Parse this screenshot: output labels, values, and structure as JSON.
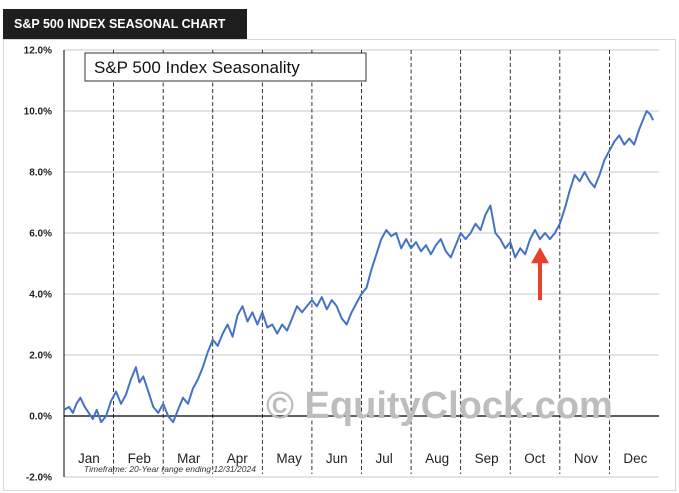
{
  "header": {
    "banner_text": "S&P 500 INDEX SEASONAL CHART"
  },
  "chart_data": {
    "type": "line",
    "title": "S&P 500 Index Seasonality",
    "xlabel": "",
    "ylabel": "",
    "ylim": [
      -2,
      12
    ],
    "xlim": [
      0,
      12
    ],
    "grid": {
      "horizontal": true,
      "vertical_dashed_month_separators": true
    },
    "y_ticks": [
      "12.0%",
      "10.0%",
      "8.0%",
      "6.0%",
      "4.0%",
      "2.0%",
      "0.0%",
      "-2.0%"
    ],
    "y_tick_values": [
      12,
      10,
      8,
      6,
      4,
      2,
      0,
      -2
    ],
    "categories": [
      "Jan",
      "Feb",
      "Mar",
      "Apr",
      "May",
      "Jun",
      "Jul",
      "Aug",
      "Sep",
      "Oct",
      "Nov",
      "Dec"
    ],
    "footnote": "Timeframe: 20-Year range ending 12/31/2024",
    "watermark": "© EquityClock.com",
    "line_color": "#4472c4",
    "arrow_color": "#e8402a",
    "annotation": {
      "type": "arrow",
      "x": 9.6,
      "y_tip": 5.4,
      "y_tail": 3.8
    },
    "series": [
      {
        "values": [
          [
            0.0,
            0.2
          ],
          [
            0.1,
            0.3
          ],
          [
            0.18,
            0.1
          ],
          [
            0.25,
            0.4
          ],
          [
            0.33,
            0.6
          ],
          [
            0.42,
            0.3
          ],
          [
            0.5,
            0.1
          ],
          [
            0.58,
            -0.1
          ],
          [
            0.66,
            0.2
          ],
          [
            0.75,
            -0.2
          ],
          [
            0.85,
            0.0
          ],
          [
            0.95,
            0.5
          ],
          [
            1.05,
            0.8
          ],
          [
            1.15,
            0.4
          ],
          [
            1.25,
            0.7
          ],
          [
            1.35,
            1.2
          ],
          [
            1.45,
            1.6
          ],
          [
            1.52,
            1.1
          ],
          [
            1.6,
            1.3
          ],
          [
            1.7,
            0.8
          ],
          [
            1.8,
            0.3
          ],
          [
            1.9,
            0.1
          ],
          [
            2.0,
            0.4
          ],
          [
            2.1,
            0.0
          ],
          [
            2.2,
            -0.2
          ],
          [
            2.3,
            0.2
          ],
          [
            2.4,
            0.6
          ],
          [
            2.5,
            0.4
          ],
          [
            2.6,
            0.9
          ],
          [
            2.7,
            1.2
          ],
          [
            2.8,
            1.6
          ],
          [
            2.9,
            2.1
          ],
          [
            3.0,
            2.5
          ],
          [
            3.1,
            2.3
          ],
          [
            3.2,
            2.7
          ],
          [
            3.3,
            3.0
          ],
          [
            3.4,
            2.6
          ],
          [
            3.5,
            3.3
          ],
          [
            3.6,
            3.6
          ],
          [
            3.7,
            3.1
          ],
          [
            3.8,
            3.4
          ],
          [
            3.9,
            3.0
          ],
          [
            4.0,
            3.4
          ],
          [
            4.1,
            2.9
          ],
          [
            4.2,
            3.0
          ],
          [
            4.3,
            2.7
          ],
          [
            4.4,
            3.0
          ],
          [
            4.5,
            2.8
          ],
          [
            4.6,
            3.2
          ],
          [
            4.7,
            3.6
          ],
          [
            4.8,
            3.4
          ],
          [
            5.0,
            3.8
          ],
          [
            5.1,
            3.6
          ],
          [
            5.2,
            3.9
          ],
          [
            5.3,
            3.5
          ],
          [
            5.4,
            3.8
          ],
          [
            5.5,
            3.6
          ],
          [
            5.6,
            3.2
          ],
          [
            5.7,
            3.0
          ],
          [
            5.8,
            3.4
          ],
          [
            5.9,
            3.7
          ],
          [
            6.0,
            4.0
          ],
          [
            6.1,
            4.2
          ],
          [
            6.2,
            4.8
          ],
          [
            6.3,
            5.3
          ],
          [
            6.4,
            5.8
          ],
          [
            6.5,
            6.1
          ],
          [
            6.6,
            5.9
          ],
          [
            6.7,
            6.0
          ],
          [
            6.8,
            5.5
          ],
          [
            6.9,
            5.8
          ],
          [
            7.0,
            5.5
          ],
          [
            7.1,
            5.7
          ],
          [
            7.2,
            5.4
          ],
          [
            7.3,
            5.6
          ],
          [
            7.4,
            5.3
          ],
          [
            7.5,
            5.6
          ],
          [
            7.6,
            5.8
          ],
          [
            7.7,
            5.4
          ],
          [
            7.8,
            5.2
          ],
          [
            7.9,
            5.6
          ],
          [
            8.0,
            6.0
          ],
          [
            8.1,
            5.8
          ],
          [
            8.2,
            6.0
          ],
          [
            8.3,
            6.3
          ],
          [
            8.4,
            6.1
          ],
          [
            8.5,
            6.6
          ],
          [
            8.6,
            6.9
          ],
          [
            8.7,
            6.0
          ],
          [
            8.8,
            5.8
          ],
          [
            8.9,
            5.5
          ],
          [
            9.0,
            5.7
          ],
          [
            9.1,
            5.2
          ],
          [
            9.2,
            5.5
          ],
          [
            9.3,
            5.3
          ],
          [
            9.4,
            5.8
          ],
          [
            9.5,
            6.1
          ],
          [
            9.6,
            5.8
          ],
          [
            9.7,
            6.0
          ],
          [
            9.8,
            5.8
          ],
          [
            9.9,
            6.0
          ],
          [
            10.0,
            6.3
          ],
          [
            10.1,
            6.8
          ],
          [
            10.2,
            7.4
          ],
          [
            10.3,
            7.9
          ],
          [
            10.4,
            7.7
          ],
          [
            10.5,
            8.0
          ],
          [
            10.6,
            7.7
          ],
          [
            10.7,
            7.5
          ],
          [
            10.8,
            7.9
          ],
          [
            10.9,
            8.4
          ],
          [
            11.0,
            8.7
          ],
          [
            11.1,
            9.0
          ],
          [
            11.2,
            9.2
          ],
          [
            11.3,
            8.9
          ],
          [
            11.4,
            9.1
          ],
          [
            11.5,
            8.9
          ],
          [
            11.6,
            9.4
          ],
          [
            11.7,
            9.8
          ],
          [
            11.75,
            10.0
          ],
          [
            11.82,
            9.9
          ],
          [
            11.88,
            9.7
          ]
        ]
      }
    ]
  }
}
